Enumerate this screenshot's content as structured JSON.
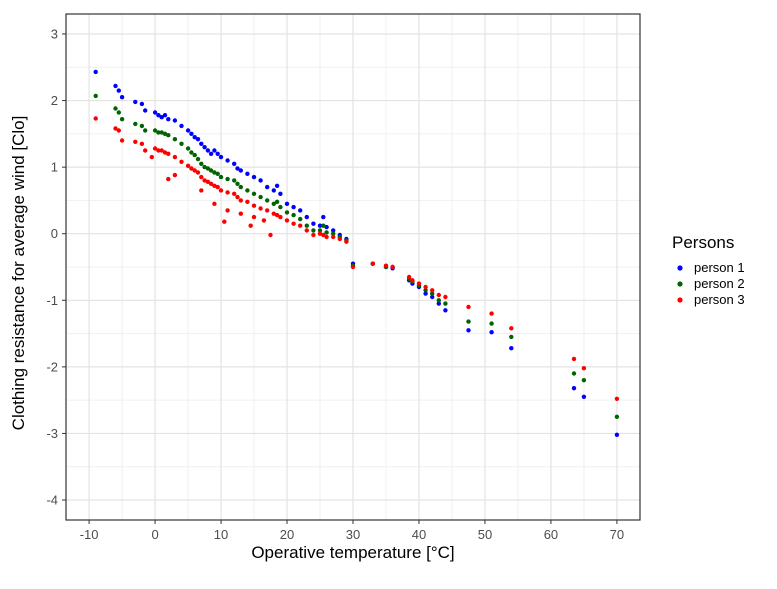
{
  "chart_data": {
    "type": "scatter",
    "title": "",
    "xlabel": "Operative temperature [°C]",
    "ylabel": "Clothing resistance for average wind [Clo]",
    "xlim": [
      -13.5,
      73.5
    ],
    "ylim": [
      -4.3,
      3.3
    ],
    "x_ticks": [
      -10,
      0,
      10,
      20,
      30,
      40,
      50,
      60,
      70
    ],
    "y_ticks": [
      -4,
      -3,
      -2,
      -1,
      0,
      1,
      2,
      3
    ],
    "x_tick_labels": [
      "-10",
      "0",
      "10",
      "20",
      "30",
      "40",
      "50",
      "60",
      "70"
    ],
    "y_tick_labels": [
      "-4",
      "-3",
      "-2",
      "-1",
      "0",
      "1",
      "2",
      "3"
    ],
    "grid": true,
    "legend": {
      "title": "Persons",
      "position": "right"
    },
    "series": [
      {
        "name": "person 1",
        "color": "#0000ff",
        "points": [
          [
            -9,
            2.43
          ],
          [
            -6,
            2.22
          ],
          [
            -5.5,
            2.15
          ],
          [
            -5,
            2.05
          ],
          [
            -3,
            1.98
          ],
          [
            -2,
            1.95
          ],
          [
            -1.5,
            1.85
          ],
          [
            0,
            1.82
          ],
          [
            0.5,
            1.78
          ],
          [
            1,
            1.75
          ],
          [
            1.5,
            1.78
          ],
          [
            2,
            1.72
          ],
          [
            3,
            1.7
          ],
          [
            4,
            1.62
          ],
          [
            5,
            1.55
          ],
          [
            5.5,
            1.5
          ],
          [
            6,
            1.45
          ],
          [
            6.5,
            1.42
          ],
          [
            7,
            1.35
          ],
          [
            7.5,
            1.3
          ],
          [
            8,
            1.25
          ],
          [
            8.5,
            1.2
          ],
          [
            9,
            1.25
          ],
          [
            9.5,
            1.2
          ],
          [
            10,
            1.15
          ],
          [
            11,
            1.1
          ],
          [
            12,
            1.05
          ],
          [
            12.5,
            0.98
          ],
          [
            13,
            0.95
          ],
          [
            14,
            0.9
          ],
          [
            15,
            0.85
          ],
          [
            16,
            0.8
          ],
          [
            17,
            0.7
          ],
          [
            18,
            0.65
          ],
          [
            18.5,
            0.72
          ],
          [
            19,
            0.6
          ],
          [
            20,
            0.45
          ],
          [
            21,
            0.4
          ],
          [
            22,
            0.35
          ],
          [
            23,
            0.25
          ],
          [
            24,
            0.15
          ],
          [
            25,
            0.12
          ],
          [
            25.5,
            0.25
          ],
          [
            26,
            0.1
          ],
          [
            27,
            0.05
          ],
          [
            28,
            -0.02
          ],
          [
            29,
            -0.08
          ],
          [
            30,
            -0.45
          ],
          [
            33,
            -0.45
          ],
          [
            35,
            -0.5
          ],
          [
            36,
            -0.52
          ],
          [
            38.5,
            -0.7
          ],
          [
            39,
            -0.75
          ],
          [
            40,
            -0.8
          ],
          [
            41,
            -0.9
          ],
          [
            42,
            -0.95
          ],
          [
            43,
            -1.05
          ],
          [
            44,
            -1.15
          ],
          [
            47.5,
            -1.45
          ],
          [
            51,
            -1.48
          ],
          [
            54,
            -1.72
          ],
          [
            63.5,
            -2.32
          ],
          [
            65,
            -2.45
          ],
          [
            70,
            -3.02
          ]
        ]
      },
      {
        "name": "person 2",
        "color": "#006400",
        "points": [
          [
            -9,
            2.07
          ],
          [
            -6,
            1.88
          ],
          [
            -5.5,
            1.82
          ],
          [
            -5,
            1.72
          ],
          [
            -3,
            1.65
          ],
          [
            -2,
            1.62
          ],
          [
            -1.5,
            1.55
          ],
          [
            0,
            1.55
          ],
          [
            0.5,
            1.52
          ],
          [
            1,
            1.52
          ],
          [
            1.5,
            1.5
          ],
          [
            2,
            1.48
          ],
          [
            3,
            1.42
          ],
          [
            4,
            1.35
          ],
          [
            5,
            1.28
          ],
          [
            5.5,
            1.22
          ],
          [
            6,
            1.18
          ],
          [
            6.5,
            1.12
          ],
          [
            7,
            1.05
          ],
          [
            7.5,
            1.0
          ],
          [
            8,
            0.98
          ],
          [
            8.5,
            0.95
          ],
          [
            9,
            0.92
          ],
          [
            9.5,
            0.9
          ],
          [
            10,
            0.85
          ],
          [
            11,
            0.82
          ],
          [
            12,
            0.8
          ],
          [
            12.5,
            0.75
          ],
          [
            13,
            0.7
          ],
          [
            14,
            0.65
          ],
          [
            15,
            0.6
          ],
          [
            16,
            0.55
          ],
          [
            17,
            0.5
          ],
          [
            18,
            0.45
          ],
          [
            18.5,
            0.48
          ],
          [
            19,
            0.4
          ],
          [
            20,
            0.32
          ],
          [
            21,
            0.28
          ],
          [
            22,
            0.22
          ],
          [
            23,
            0.12
          ],
          [
            24,
            0.05
          ],
          [
            25,
            0.05
          ],
          [
            25.5,
            0.12
          ],
          [
            26,
            0.02
          ],
          [
            27,
            0.0
          ],
          [
            28,
            -0.05
          ],
          [
            29,
            -0.1
          ],
          [
            30,
            -0.48
          ],
          [
            33,
            -0.45
          ],
          [
            35,
            -0.5
          ],
          [
            36,
            -0.5
          ],
          [
            38.5,
            -0.68
          ],
          [
            39,
            -0.72
          ],
          [
            40,
            -0.78
          ],
          [
            41,
            -0.85
          ],
          [
            42,
            -0.9
          ],
          [
            43,
            -1.0
          ],
          [
            44,
            -1.05
          ],
          [
            47.5,
            -1.32
          ],
          [
            51,
            -1.35
          ],
          [
            54,
            -1.55
          ],
          [
            63.5,
            -2.1
          ],
          [
            65,
            -2.2
          ],
          [
            70,
            -2.75
          ]
        ]
      },
      {
        "name": "person 3",
        "color": "#ff0000",
        "points": [
          [
            -9,
            1.73
          ],
          [
            -6,
            1.58
          ],
          [
            -5.5,
            1.55
          ],
          [
            -5,
            1.4
          ],
          [
            -3,
            1.38
          ],
          [
            -2,
            1.35
          ],
          [
            -1.5,
            1.25
          ],
          [
            0,
            1.28
          ],
          [
            0.5,
            1.25
          ],
          [
            1,
            1.25
          ],
          [
            1.5,
            1.22
          ],
          [
            2,
            1.2
          ],
          [
            3,
            1.15
          ],
          [
            4,
            1.08
          ],
          [
            5,
            1.02
          ],
          [
            5.5,
            0.98
          ],
          [
            6,
            0.95
          ],
          [
            6.5,
            0.92
          ],
          [
            7,
            0.85
          ],
          [
            7.5,
            0.8
          ],
          [
            8,
            0.78
          ],
          [
            8.5,
            0.75
          ],
          [
            9,
            0.72
          ],
          [
            9.5,
            0.7
          ],
          [
            10,
            0.65
          ],
          [
            11,
            0.62
          ],
          [
            12,
            0.6
          ],
          [
            12.5,
            0.55
          ],
          [
            13,
            0.5
          ],
          [
            14,
            0.48
          ],
          [
            15,
            0.42
          ],
          [
            16,
            0.38
          ],
          [
            17,
            0.35
          ],
          [
            18,
            0.3
          ],
          [
            18.5,
            0.28
          ],
          [
            19,
            0.25
          ],
          [
            20,
            0.2
          ],
          [
            21,
            0.15
          ],
          [
            22,
            0.12
          ],
          [
            23,
            0.05
          ],
          [
            24,
            -0.02
          ],
          [
            25,
            0.0
          ],
          [
            25.5,
            -0.02
          ],
          [
            26,
            -0.05
          ],
          [
            27,
            -0.05
          ],
          [
            28,
            -0.08
          ],
          [
            29,
            -0.12
          ],
          [
            30,
            -0.5
          ],
          [
            33,
            -0.45
          ],
          [
            35,
            -0.48
          ],
          [
            36,
            -0.5
          ],
          [
            38.5,
            -0.65
          ],
          [
            39,
            -0.7
          ],
          [
            40,
            -0.75
          ],
          [
            41,
            -0.8
          ],
          [
            42,
            -0.85
          ],
          [
            43,
            -0.92
          ],
          [
            44,
            -0.95
          ],
          [
            47.5,
            -1.1
          ],
          [
            51,
            -1.2
          ],
          [
            54,
            -1.42
          ],
          [
            63.5,
            -1.88
          ],
          [
            65,
            -2.02
          ],
          [
            70,
            -2.48
          ],
          [
            -0.5,
            1.15
          ],
          [
            2,
            0.82
          ],
          [
            3,
            0.88
          ],
          [
            7,
            0.65
          ],
          [
            10.5,
            0.18
          ],
          [
            14.5,
            0.12
          ],
          [
            17.5,
            -0.02
          ],
          [
            9,
            0.45
          ],
          [
            11,
            0.35
          ],
          [
            13,
            0.3
          ],
          [
            15,
            0.25
          ],
          [
            16.5,
            0.2
          ]
        ]
      }
    ]
  }
}
